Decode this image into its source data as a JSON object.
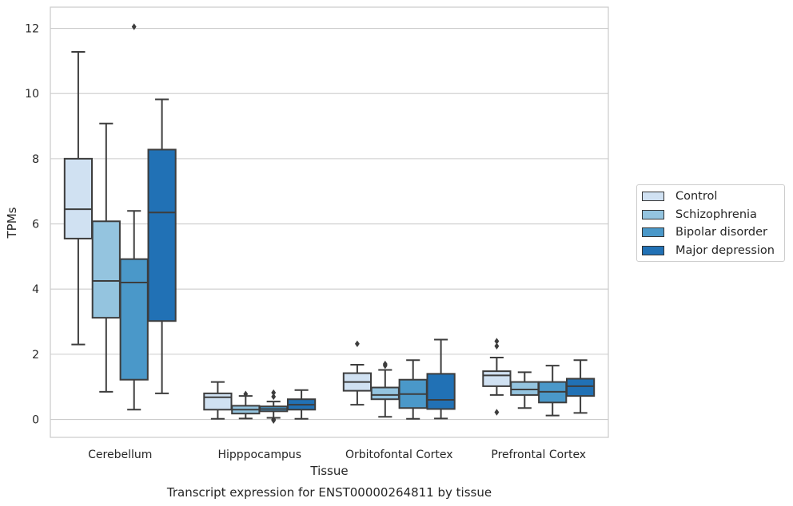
{
  "chart_data": {
    "type": "box",
    "caption": "Transcript expression for ENST00000264811 by tissue",
    "xlabel": "Tissue",
    "ylabel": "TPMs",
    "ylim": [
      -0.55,
      12.65
    ],
    "yticks": [
      0,
      2,
      4,
      6,
      8,
      10,
      12
    ],
    "grid": true,
    "legend_position": "right",
    "categories": [
      "Cerebellum",
      "Hipppocampus",
      "Orbitofontal Cortex",
      "Prefrontal Cortex"
    ],
    "series": [
      {
        "name": "Control",
        "color": "#d0e1f2",
        "boxes": [
          {
            "min": 2.3,
            "q1": 5.55,
            "median": 6.45,
            "q3": 8.0,
            "max": 11.28,
            "outliers": []
          },
          {
            "min": 0.02,
            "q1": 0.3,
            "median": 0.68,
            "q3": 0.8,
            "max": 1.15,
            "outliers": []
          },
          {
            "min": 0.45,
            "q1": 0.88,
            "median": 1.15,
            "q3": 1.42,
            "max": 1.68,
            "outliers": [
              2.32
            ]
          },
          {
            "min": 0.75,
            "q1": 1.02,
            "median": 1.35,
            "q3": 1.48,
            "max": 1.9,
            "outliers": [
              2.25,
              2.4,
              0.22
            ]
          }
        ]
      },
      {
        "name": "Schizophrenia",
        "color": "#94c4df",
        "boxes": [
          {
            "min": 0.85,
            "q1": 3.12,
            "median": 4.25,
            "q3": 6.08,
            "max": 9.08,
            "outliers": []
          },
          {
            "min": 0.03,
            "q1": 0.18,
            "median": 0.3,
            "q3": 0.42,
            "max": 0.72,
            "outliers": [
              0.78
            ]
          },
          {
            "min": 0.08,
            "q1": 0.62,
            "median": 0.75,
            "q3": 0.98,
            "max": 1.52,
            "outliers": [
              1.65,
              1.7
            ]
          },
          {
            "min": 0.35,
            "q1": 0.75,
            "median": 0.92,
            "q3": 1.15,
            "max": 1.45,
            "outliers": []
          }
        ]
      },
      {
        "name": "Bipolar disorder",
        "color": "#4a98c9",
        "boxes": [
          {
            "min": 0.3,
            "q1": 1.22,
            "median": 4.2,
            "q3": 4.92,
            "max": 6.4,
            "outliers": [
              12.05
            ]
          },
          {
            "min": 0.05,
            "q1": 0.25,
            "median": 0.32,
            "q3": 0.4,
            "max": 0.55,
            "outliers": [
              0.7,
              0.82,
              0.0,
              -0.03
            ]
          },
          {
            "min": 0.02,
            "q1": 0.35,
            "median": 0.78,
            "q3": 1.22,
            "max": 1.82,
            "outliers": []
          },
          {
            "min": 0.12,
            "q1": 0.52,
            "median": 0.85,
            "q3": 1.15,
            "max": 1.65,
            "outliers": []
          }
        ]
      },
      {
        "name": "Major depression",
        "color": "#2171b5",
        "boxes": [
          {
            "min": 0.8,
            "q1": 3.02,
            "median": 6.35,
            "q3": 8.28,
            "max": 9.82,
            "outliers": []
          },
          {
            "min": 0.02,
            "q1": 0.3,
            "median": 0.45,
            "q3": 0.62,
            "max": 0.9,
            "outliers": []
          },
          {
            "min": 0.03,
            "q1": 0.32,
            "median": 0.6,
            "q3": 1.4,
            "max": 2.45,
            "outliers": []
          },
          {
            "min": 0.2,
            "q1": 0.72,
            "median": 1.02,
            "q3": 1.25,
            "max": 1.82,
            "outliers": []
          }
        ]
      }
    ]
  }
}
